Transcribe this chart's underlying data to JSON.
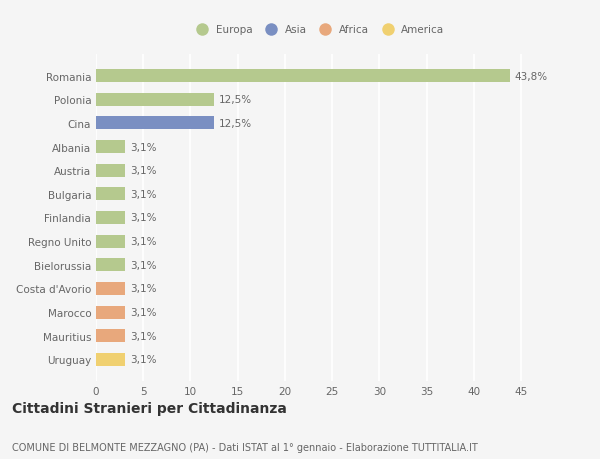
{
  "countries": [
    "Romania",
    "Polonia",
    "Cina",
    "Albania",
    "Austria",
    "Bulgaria",
    "Finlandia",
    "Regno Unito",
    "Bielorussia",
    "Costa d'Avorio",
    "Marocco",
    "Mauritius",
    "Uruguay"
  ],
  "values": [
    43.8,
    12.5,
    12.5,
    3.1,
    3.1,
    3.1,
    3.1,
    3.1,
    3.1,
    3.1,
    3.1,
    3.1,
    3.1
  ],
  "labels": [
    "43,8%",
    "12,5%",
    "12,5%",
    "3,1%",
    "3,1%",
    "3,1%",
    "3,1%",
    "3,1%",
    "3,1%",
    "3,1%",
    "3,1%",
    "3,1%",
    "3,1%"
  ],
  "bar_colors": [
    "#b5c98e",
    "#b5c98e",
    "#7a8fc2",
    "#b5c98e",
    "#b5c98e",
    "#b5c98e",
    "#b5c98e",
    "#b5c98e",
    "#b5c98e",
    "#e8a87c",
    "#e8a87c",
    "#e8a87c",
    "#f0d070"
  ],
  "legend_labels": [
    "Europa",
    "Asia",
    "Africa",
    "America"
  ],
  "legend_colors": [
    "#b5c98e",
    "#7a8fc2",
    "#e8a87c",
    "#f0d070"
  ],
  "xlim": [
    0,
    47
  ],
  "xticks": [
    0,
    5,
    10,
    15,
    20,
    25,
    30,
    35,
    40,
    45
  ],
  "title": "Cittadini Stranieri per Cittadinanza",
  "subtitle": "COMUNE DI BELMONTE MEZZAGNO (PA) - Dati ISTAT al 1° gennaio - Elaborazione TUTTITALIA.IT",
  "background_color": "#f5f5f5",
  "grid_color": "#ffffff",
  "bar_height": 0.55,
  "label_fontsize": 7.5,
  "tick_fontsize": 7.5,
  "title_fontsize": 10,
  "subtitle_fontsize": 7.0
}
